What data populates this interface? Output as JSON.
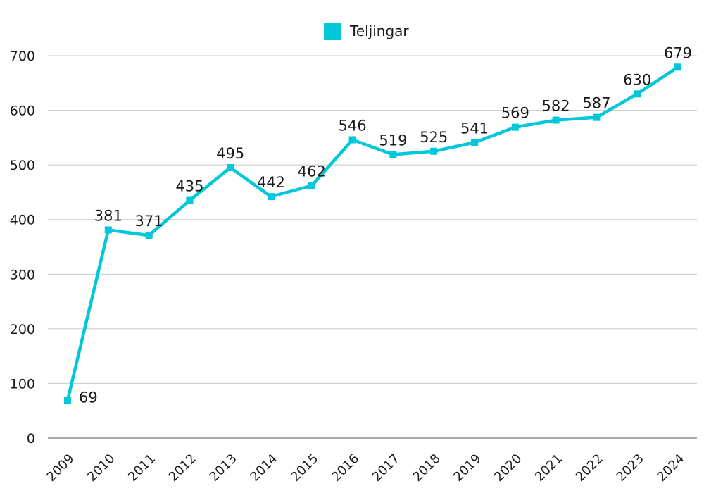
{
  "chart_data": {
    "type": "line",
    "title": "",
    "xlabel": "",
    "ylabel": "",
    "categories": [
      "2009",
      "2010",
      "2011",
      "2012",
      "2013",
      "2014",
      "2015",
      "2016",
      "2017",
      "2018",
      "2019",
      "2020",
      "2021",
      "2022",
      "2023",
      "2024"
    ],
    "series": [
      {
        "name": "Teljingar",
        "values": [
          69,
          381,
          371,
          435,
          495,
          442,
          462,
          546,
          519,
          525,
          541,
          569,
          582,
          587,
          630,
          679
        ],
        "color": "#00C8DA"
      }
    ],
    "ylim": [
      0,
      700
    ],
    "yticks": [
      0,
      100,
      200,
      300,
      400,
      500,
      600,
      700
    ],
    "grid": true,
    "legend_position": "top-center",
    "data_labels": true
  },
  "colors": {
    "series": "#00C8DA",
    "grid": "#c8c8c8",
    "axis": "#555555",
    "text": "#1a1a1a"
  }
}
